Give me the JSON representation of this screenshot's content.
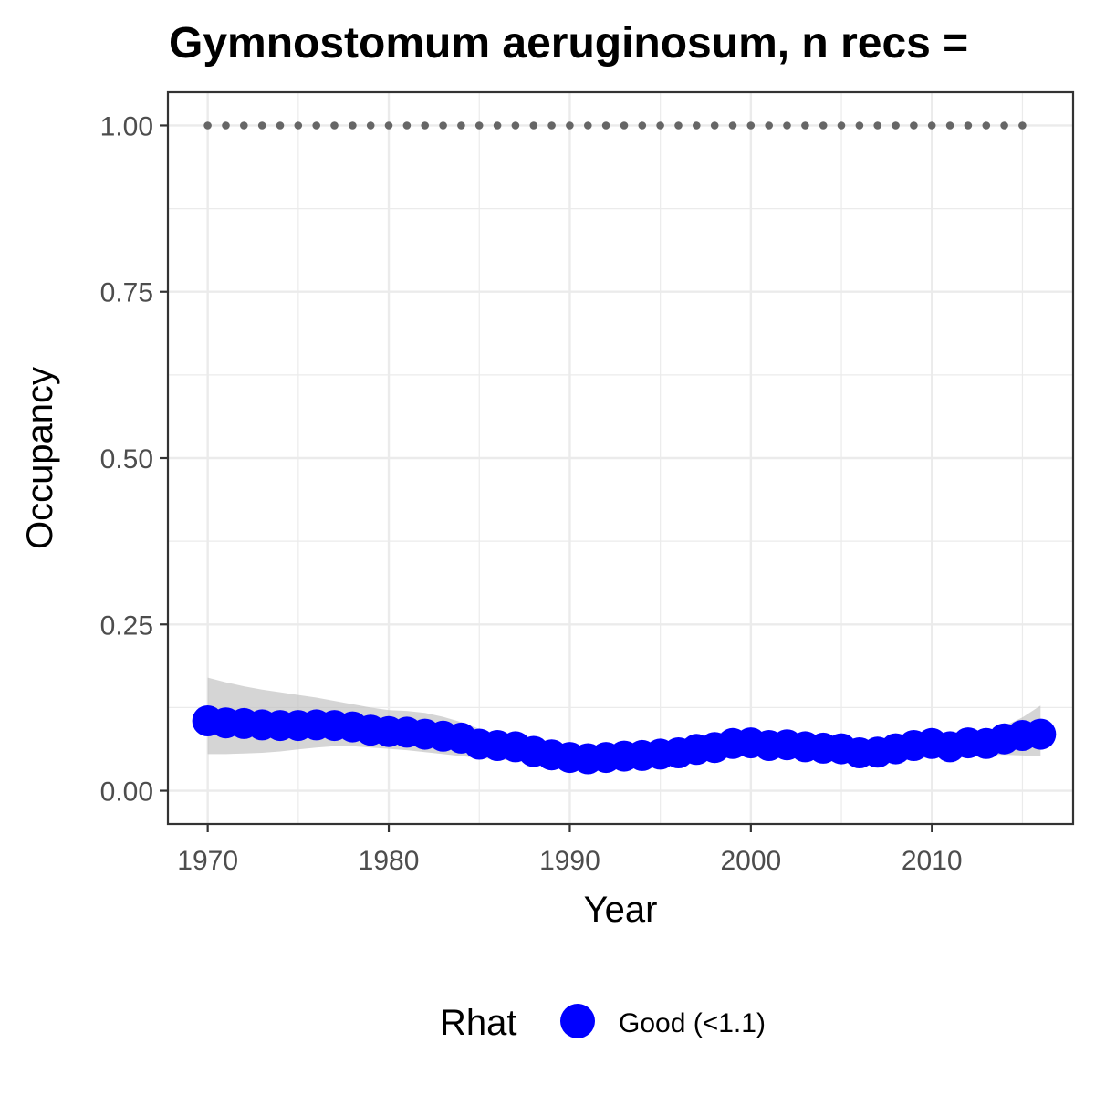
{
  "chart_data": {
    "type": "line",
    "title": "Gymnostomum aeruginosum, n recs =",
    "xlabel": "Year",
    "ylabel": "Occupancy",
    "xlim": [
      1967.8,
      2017.8
    ],
    "ylim": [
      -0.05,
      1.05
    ],
    "x_ticks": [
      1970,
      1980,
      1990,
      2000,
      2010
    ],
    "x_tick_labels": [
      "1970",
      "1980",
      "1990",
      "2000",
      "2010"
    ],
    "y_ticks": [
      0,
      0.25,
      0.5,
      0.75,
      1.0
    ],
    "y_tick_labels": [
      "0.00",
      "0.25",
      "0.50",
      "0.75",
      "1.00"
    ],
    "grid": true,
    "legend_position": "bottom",
    "legend": {
      "title": "Rhat",
      "entries": [
        {
          "label": "Good (<1.1)",
          "color": "#0000ff"
        }
      ]
    },
    "colors": {
      "points": "#0000ff",
      "ribbon": "#bebebe",
      "dotted_line": "#666666",
      "grid": "#ebebeb",
      "panel_border": "#333333"
    },
    "dotted_reference": {
      "x_start": 1970,
      "x_end": 2015,
      "y": 1.0
    },
    "series": [
      {
        "x": [
          1970,
          1971,
          1972,
          1973,
          1974,
          1975,
          1976,
          1977,
          1978,
          1979,
          1980,
          1981,
          1982,
          1983,
          1984,
          1985,
          1986,
          1987,
          1988,
          1989,
          1990,
          1991,
          1992,
          1993,
          1994,
          1995,
          1996,
          1997,
          1998,
          1999,
          2000,
          2001,
          2002,
          2003,
          2004,
          2005,
          2006,
          2007,
          2008,
          2009,
          2010,
          2011,
          2012,
          2013,
          2014,
          2015,
          2016
        ],
        "values": [
          0.105,
          0.102,
          0.101,
          0.099,
          0.098,
          0.098,
          0.099,
          0.098,
          0.096,
          0.091,
          0.089,
          0.088,
          0.085,
          0.082,
          0.079,
          0.07,
          0.068,
          0.066,
          0.059,
          0.054,
          0.05,
          0.048,
          0.05,
          0.052,
          0.053,
          0.055,
          0.057,
          0.062,
          0.065,
          0.071,
          0.072,
          0.068,
          0.069,
          0.066,
          0.064,
          0.063,
          0.057,
          0.058,
          0.063,
          0.068,
          0.071,
          0.066,
          0.072,
          0.071,
          0.078,
          0.083,
          0.085
        ]
      }
    ],
    "ribbon": {
      "x": [
        1970,
        1971,
        1972,
        1973,
        1974,
        1975,
        1976,
        1977,
        1978,
        1979,
        1980,
        1981,
        1982,
        1983,
        1984,
        1985,
        1986,
        1987,
        1988,
        1989,
        1990,
        1991,
        1992,
        1993,
        1994,
        1995,
        1996,
        1997,
        1998,
        1999,
        2000,
        2001,
        2002,
        2003,
        2004,
        2005,
        2006,
        2007,
        2008,
        2009,
        2010,
        2011,
        2012,
        2013,
        2014,
        2015,
        2016
      ],
      "upper": [
        0.17,
        0.163,
        0.157,
        0.152,
        0.148,
        0.144,
        0.14,
        0.135,
        0.13,
        0.125,
        0.121,
        0.12,
        0.117,
        0.111,
        0.103,
        0.093,
        0.083,
        0.076,
        0.07,
        0.064,
        0.059,
        0.058,
        0.06,
        0.063,
        0.065,
        0.068,
        0.07,
        0.073,
        0.076,
        0.079,
        0.081,
        0.081,
        0.08,
        0.078,
        0.076,
        0.074,
        0.072,
        0.072,
        0.074,
        0.076,
        0.079,
        0.081,
        0.084,
        0.089,
        0.097,
        0.11,
        0.128
      ],
      "lower": [
        0.055,
        0.055,
        0.056,
        0.057,
        0.059,
        0.062,
        0.065,
        0.067,
        0.067,
        0.065,
        0.063,
        0.061,
        0.058,
        0.055,
        0.052,
        0.049,
        0.047,
        0.045,
        0.043,
        0.042,
        0.041,
        0.041,
        0.041,
        0.042,
        0.043,
        0.045,
        0.047,
        0.05,
        0.053,
        0.056,
        0.058,
        0.059,
        0.058,
        0.056,
        0.053,
        0.05,
        0.048,
        0.047,
        0.047,
        0.048,
        0.05,
        0.052,
        0.053,
        0.054,
        0.054,
        0.053,
        0.052
      ]
    }
  }
}
